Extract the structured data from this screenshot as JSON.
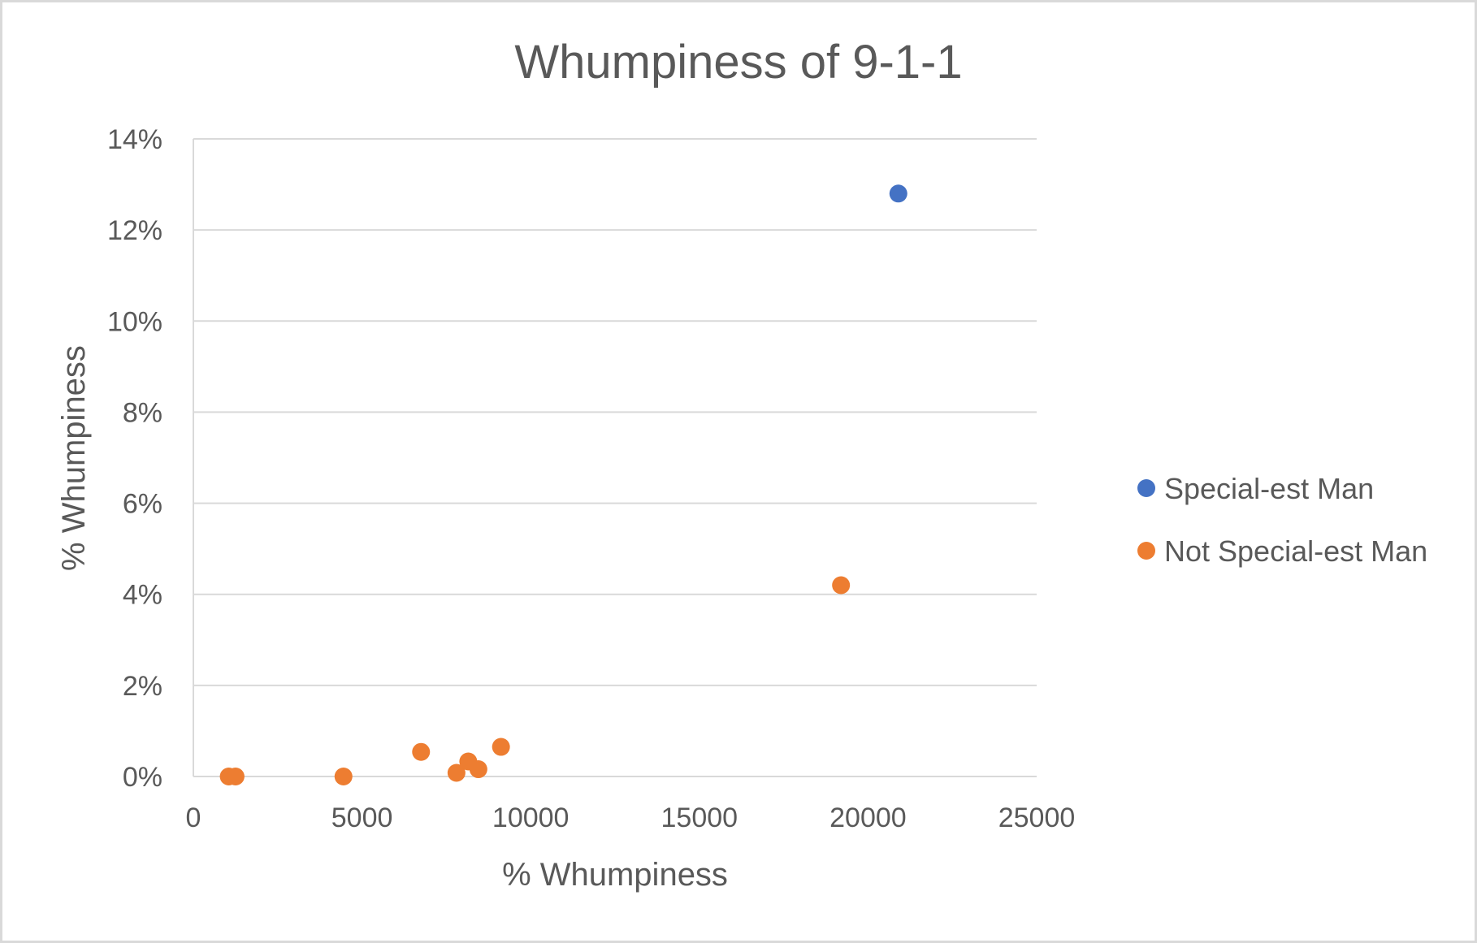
{
  "chart_data": {
    "type": "scatter",
    "title": "Whumpiness of 9-1-1",
    "xlabel": "% Whumpiness",
    "ylabel": "% Whumpiness",
    "xlim": [
      0,
      25000
    ],
    "ylim": [
      0,
      0.14
    ],
    "x_ticks": [
      0,
      5000,
      10000,
      15000,
      20000,
      25000
    ],
    "x_tick_labels": [
      "0",
      "5000",
      "10000",
      "15000",
      "20000",
      "25000"
    ],
    "y_ticks": [
      0,
      0.02,
      0.04,
      0.06,
      0.08,
      0.1,
      0.12,
      0.14
    ],
    "y_tick_labels": [
      "0%",
      "2%",
      "4%",
      "6%",
      "8%",
      "10%",
      "12%",
      "14%"
    ],
    "grid": "horizontal",
    "legend_position": "right",
    "series": [
      {
        "name": "Special-est Man",
        "color": "#4472c4",
        "points": [
          {
            "x": 20900,
            "y": 0.128
          }
        ]
      },
      {
        "name": "Not Special-est Man",
        "color": "#ed7d31",
        "points": [
          {
            "x": 1050,
            "y": 0.0
          },
          {
            "x": 1250,
            "y": 0.0
          },
          {
            "x": 4450,
            "y": 0.0
          },
          {
            "x": 6750,
            "y": 0.0054
          },
          {
            "x": 7800,
            "y": 0.0008
          },
          {
            "x": 8150,
            "y": 0.0033
          },
          {
            "x": 8450,
            "y": 0.0016
          },
          {
            "x": 9120,
            "y": 0.0065
          },
          {
            "x": 19200,
            "y": 0.042
          }
        ]
      }
    ]
  }
}
